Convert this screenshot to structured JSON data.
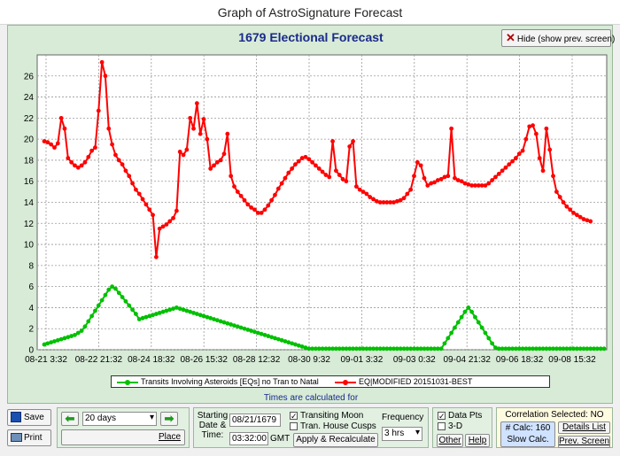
{
  "window": {
    "title": "Graph of AstroSignature Forecast"
  },
  "chart_header": {
    "title": "1679 Electional Forecast",
    "hide_button": "Hide (show prev. screen)"
  },
  "chart_data": {
    "type": "line",
    "title": "1679 Electional Forecast",
    "x_tick_labels": [
      "08-21 3:32",
      "08-22 21:32",
      "08-24 18:32",
      "08-26 15:32",
      "08-28 12:32",
      "08-30 9:32",
      "09-01 3:32",
      "09-03 0:32",
      "09-04 21:32",
      "09-06 18:32",
      "09-08 15:32"
    ],
    "ylim": [
      0,
      28
    ],
    "y_ticks": [
      "0",
      "2",
      "4",
      "6",
      "8",
      "10",
      "12",
      "14",
      "16",
      "18",
      "20",
      "22",
      "24",
      "26"
    ],
    "grid": true,
    "legend_position": "bottom",
    "series": [
      {
        "name": "Transits Involving Asteroids [EQs] no Tran to Natal",
        "color": "#00c000",
        "values": [
          0.5,
          0.6,
          0.7,
          0.8,
          0.9,
          1.0,
          1.1,
          1.2,
          1.3,
          1.4,
          1.6,
          1.8,
          2.2,
          2.7,
          3.2,
          3.7,
          4.2,
          4.7,
          5.2,
          5.7,
          6.0,
          5.8,
          5.4,
          5.0,
          4.6,
          4.2,
          3.8,
          3.4,
          2.9,
          3.0,
          3.1,
          3.2,
          3.3,
          3.4,
          3.5,
          3.6,
          3.7,
          3.8,
          3.9,
          4.0,
          3.9,
          3.8,
          3.7,
          3.6,
          3.5,
          3.4,
          3.3,
          3.2,
          3.1,
          3.0,
          2.9,
          2.8,
          2.7,
          2.6,
          2.5,
          2.4,
          2.3,
          2.2,
          2.1,
          2.0,
          1.9,
          1.8,
          1.7,
          1.6,
          1.5,
          1.4,
          1.3,
          1.2,
          1.1,
          1.0,
          0.9,
          0.8,
          0.7,
          0.6,
          0.5,
          0.4,
          0.3,
          0.2,
          0.1,
          0.1,
          0.1,
          0.1,
          0.1,
          0.1,
          0.1,
          0.1,
          0.1,
          0.1,
          0.1,
          0.1,
          0.1,
          0.1,
          0.1,
          0.1,
          0.1,
          0.1,
          0.1,
          0.1,
          0.1,
          0.1,
          0.1,
          0.1,
          0.1,
          0.1,
          0.1,
          0.1,
          0.1,
          0.1,
          0.1,
          0.1,
          0.1,
          0.1,
          0.1,
          0.1,
          0.1,
          0.1,
          0.1,
          0.1,
          0.6,
          1.1,
          1.6,
          2.1,
          2.6,
          3.1,
          3.6,
          4.0,
          3.6,
          3.1,
          2.6,
          2.1,
          1.6,
          1.1,
          0.6,
          0.2,
          0.1,
          0.1,
          0.1,
          0.1,
          0.1,
          0.1,
          0.1,
          0.1,
          0.1,
          0.1,
          0.1,
          0.1,
          0.1,
          0.1,
          0.1,
          0.1,
          0.1,
          0.1,
          0.1,
          0.1,
          0.1,
          0.1,
          0.1,
          0.1,
          0.1,
          0.1,
          0.1,
          0.1,
          0.1,
          0.1,
          0.1,
          0.1
        ]
      },
      {
        "name": "EQ|MODIFIED 20151031-BEST",
        "color": "#ff0000",
        "values": [
          19.8,
          19.7,
          19.5,
          19.2,
          19.6,
          22.0,
          21.0,
          18.2,
          17.8,
          17.5,
          17.3,
          17.5,
          17.8,
          18.3,
          18.9,
          19.2,
          22.7,
          27.3,
          26.0,
          21.0,
          19.5,
          18.5,
          18.0,
          17.6,
          17.0,
          16.5,
          15.8,
          15.2,
          14.8,
          14.3,
          13.8,
          13.3,
          12.8,
          8.8,
          11.5,
          11.7,
          11.9,
          12.2,
          12.5,
          13.2,
          18.8,
          18.5,
          19.0,
          22.0,
          21.0,
          23.4,
          20.5,
          21.9,
          20.0,
          17.2,
          17.5,
          17.8,
          18.0,
          18.6,
          20.5,
          16.5,
          15.5,
          15.0,
          14.6,
          14.2,
          13.8,
          13.5,
          13.3,
          13.0,
          13.0,
          13.3,
          13.7,
          14.2,
          14.7,
          15.3,
          15.8,
          16.3,
          16.8,
          17.2,
          17.6,
          17.9,
          18.2,
          18.3,
          18.1,
          17.8,
          17.5,
          17.2,
          16.9,
          16.6,
          16.4,
          19.8,
          17.0,
          16.6,
          16.2,
          16.0,
          19.3,
          19.8,
          15.5,
          15.2,
          15.0,
          14.8,
          14.5,
          14.3,
          14.1,
          14.0,
          14.0,
          14.0,
          14.0,
          14.0,
          14.1,
          14.2,
          14.4,
          14.8,
          15.2,
          16.5,
          17.8,
          17.5,
          16.3,
          15.6,
          15.8,
          15.9,
          16.1,
          16.2,
          16.4,
          16.5,
          21.0,
          16.3,
          16.1,
          16.0,
          15.8,
          15.7,
          15.6,
          15.6,
          15.6,
          15.6,
          15.6,
          15.8,
          16.1,
          16.4,
          16.7,
          17.0,
          17.3,
          17.6,
          17.9,
          18.2,
          18.6,
          18.9,
          20.0,
          21.2,
          21.3,
          20.5,
          18.2,
          17.0,
          21.0,
          19.0,
          16.5,
          15.0,
          14.5,
          14.0,
          13.6,
          13.3,
          13.0,
          12.8,
          12.6,
          12.4,
          12.3,
          12.2
        ]
      }
    ]
  },
  "legend_items": [
    "Transits Involving Asteroids [EQs] no Tran to Natal",
    "EQ|MODIFIED 20151031-BEST"
  ],
  "times_note": "Times are calculated for",
  "controls": {
    "save_label": "Save",
    "print_label": "Print",
    "days_value": "20 days",
    "place_label": "Place",
    "starting_label_1": "Starting",
    "starting_label_2": "Date &",
    "starting_label_3": "Time:",
    "date_value": "08/21/1679",
    "time_value": "03:32:00",
    "gmt_label": "GMT",
    "transiting_moon": "Transiting Moon",
    "tran_house_cusps": "Tran. House Cusps",
    "frequency_label": "Frequency",
    "frequency_value": "3 hrs",
    "apply_label": "Apply & Recalculate",
    "data_pts": "Data Pts",
    "three_d": "3-D",
    "other_label": "Other",
    "help_label": "Help",
    "correlation": "Correlation Selected: NO",
    "calc_count": "# Calc: 160",
    "slow_calc": "Slow Calc.",
    "details_list": "Details List",
    "prev_screen": "Prev. Screen"
  },
  "colors": {
    "green_series": "#00c000",
    "red_series": "#ff0000",
    "title_blue": "#1a2a8a",
    "panel_green": "#d7ebd7"
  }
}
